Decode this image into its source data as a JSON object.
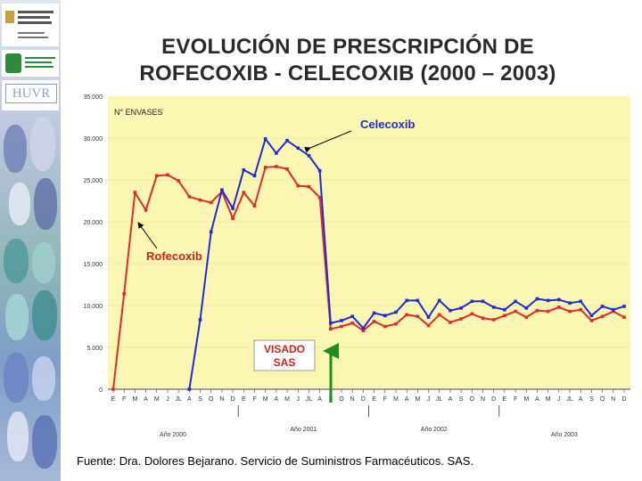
{
  "slide": {
    "title_line1": "EVOLUCIÓN DE PRESCRIPCIÓN DE",
    "title_line2": "ROFECOXIB - CELECOXIB  (2000 – 2003)",
    "source": "Fuente: Dra. Dolores Bejarano. Servicio de Suministros Farmacéuticos. SAS."
  },
  "colors": {
    "plot_bg": "#fbf6b2",
    "celecoxib": "#1f2bd6",
    "rofecoxib": "#e02b2b",
    "label_text": "#d41f1f",
    "celecoxib_label": "#1f2bd6",
    "arrow_green": "#1e8f1e"
  },
  "chart_data": {
    "type": "line",
    "ylabel": "N° ENVASES",
    "ylim": [
      0,
      35000
    ],
    "yticks": [
      "0",
      "5.000",
      "10.000",
      "15.000",
      "20.000",
      "25.000",
      "30.000",
      "35.000"
    ],
    "categories": [
      "E",
      "F",
      "M",
      "A",
      "M",
      "J",
      "JL",
      "A",
      "S",
      "O",
      "N",
      "D",
      "E",
      "F",
      "M",
      "A",
      "M",
      "J",
      "JL",
      "A",
      "S",
      "O",
      "N",
      "D",
      "E",
      "F",
      "M",
      "A",
      "M",
      "J",
      "JL",
      "A",
      "S",
      "O",
      "N",
      "D",
      "E",
      "F",
      "M",
      "A",
      "M",
      "J",
      "JL",
      "A",
      "S",
      "O",
      "N",
      "D"
    ],
    "year_labels": [
      "Año 2000",
      "Año 2001",
      "Año 2002",
      "Año 2003"
    ],
    "series": [
      {
        "name": "Celecoxib",
        "values": [
          null,
          null,
          null,
          null,
          null,
          null,
          null,
          0,
          8300,
          18800,
          23800,
          21600,
          26200,
          25500,
          29900,
          28200,
          29700,
          28800,
          27900,
          26100,
          7900,
          8200,
          8700,
          7300,
          9100,
          8800,
          9200,
          10600,
          10600,
          8600,
          10600,
          9400,
          9700,
          10500,
          10500,
          9800,
          9500,
          10500,
          9700,
          10800,
          10600,
          10700,
          10300,
          10500,
          8800,
          9900,
          9500,
          9900
        ]
      },
      {
        "name": "Rofecoxib",
        "values": [
          0,
          11400,
          23500,
          21400,
          25500,
          25600,
          24900,
          23000,
          22600,
          22300,
          23600,
          20400,
          23500,
          21900,
          26500,
          26600,
          26300,
          24300,
          24200,
          22900,
          7200,
          7500,
          7900,
          7000,
          8100,
          7500,
          7800,
          8900,
          8700,
          7600,
          8900,
          8000,
          8400,
          9000,
          8500,
          8300,
          8800,
          9300,
          8600,
          9400,
          9300,
          9800,
          9300,
          9500,
          8200,
          8700,
          9300,
          8600
        ]
      }
    ],
    "annotations": {
      "celecoxib_label": "Celecoxib",
      "rofecoxib_label": "Rofecoxib",
      "visado_line1": "VISADO",
      "visado_line2": "SAS"
    }
  }
}
